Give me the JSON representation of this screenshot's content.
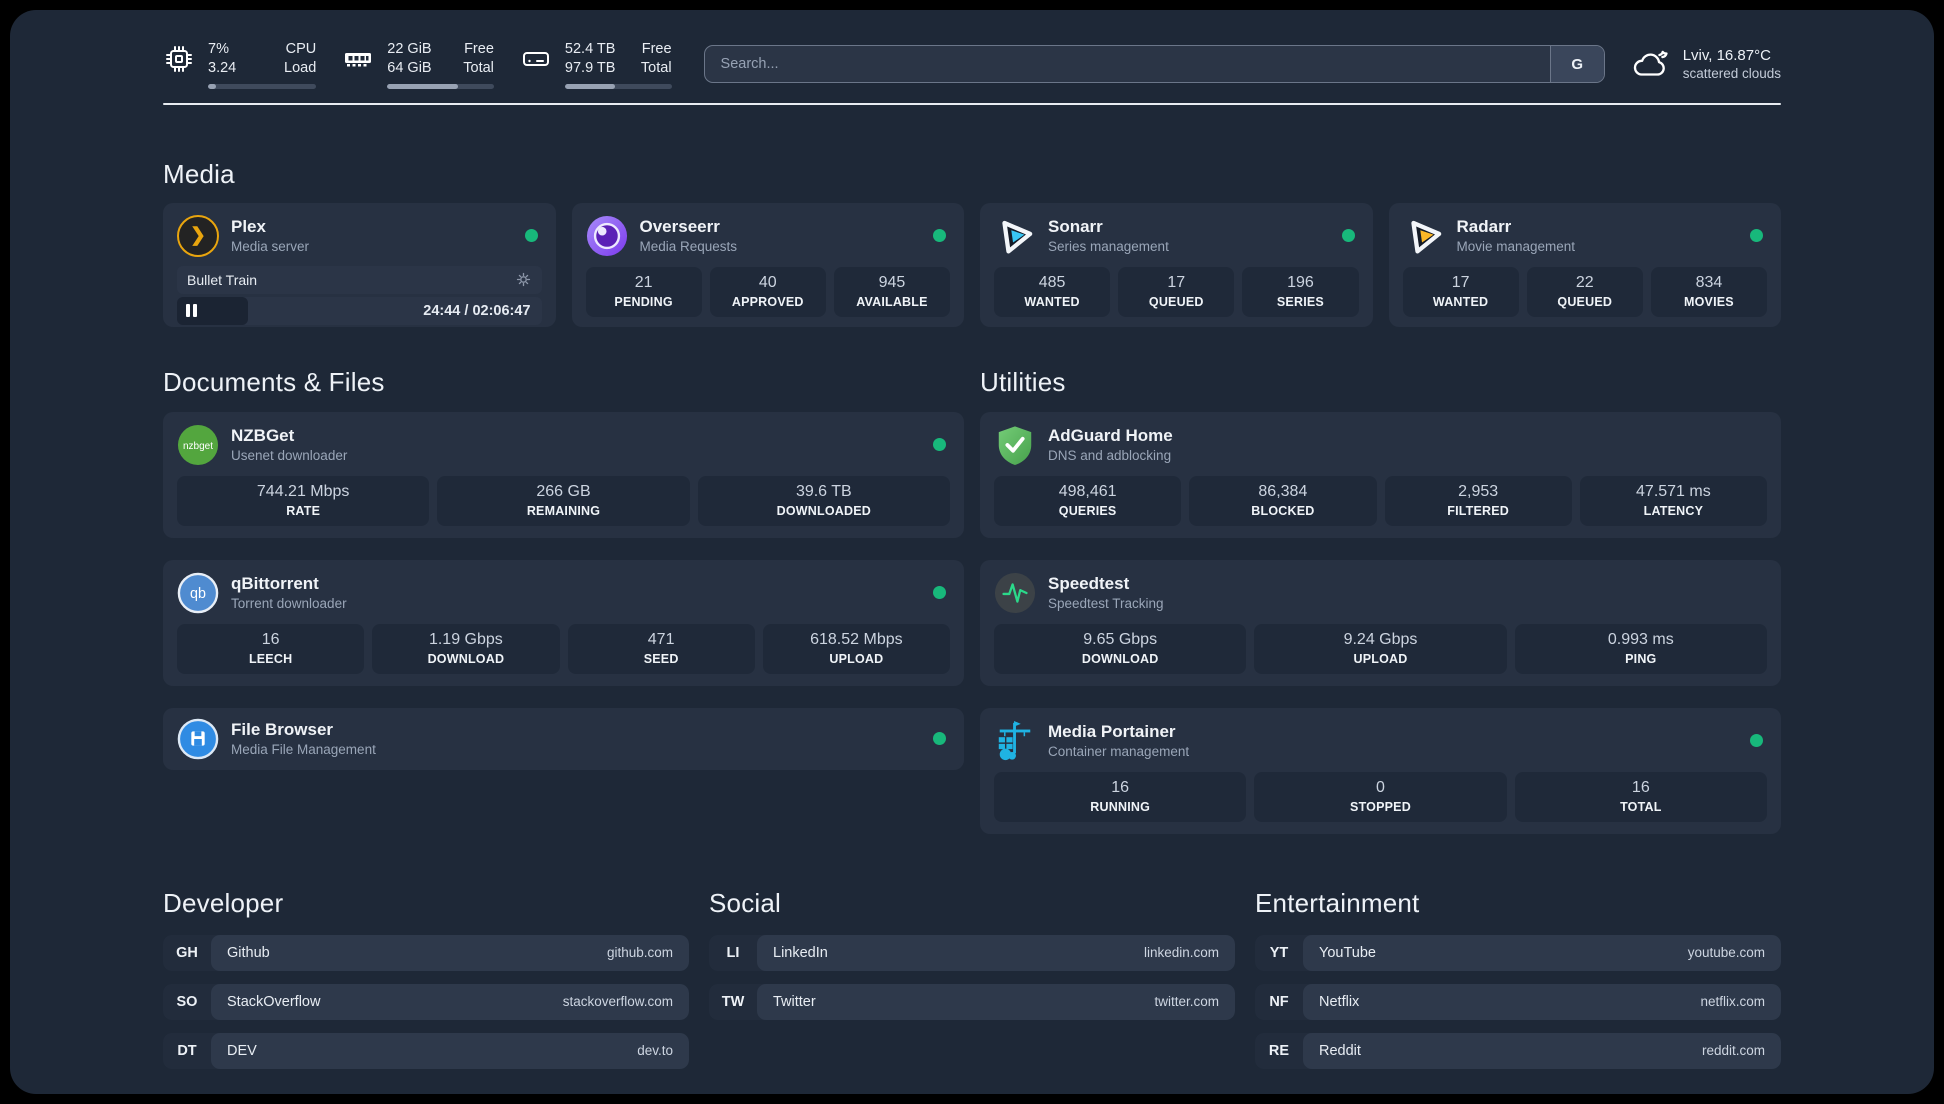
{
  "topbar": {
    "cpu": {
      "line1": "7%",
      "line2": "3.24",
      "label1": "CPU",
      "label2": "Load",
      "progress_pct": 7
    },
    "ram": {
      "line1": "22 GiB",
      "line2": "64 GiB",
      "label1": "Free",
      "label2": "Total",
      "progress_pct": 66
    },
    "disk": {
      "line1": "52.4 TB",
      "line2": "97.9 TB",
      "label1": "Free",
      "label2": "Total",
      "progress_pct": 47
    },
    "search": {
      "placeholder": "Search...",
      "engine_label": "G"
    },
    "weather": {
      "location": "Lviv, 16.87°C",
      "condition": "scattered clouds"
    }
  },
  "sections": {
    "media": "Media",
    "documents": "Documents & Files",
    "utilities": "Utilities",
    "developer": "Developer",
    "social": "Social",
    "entertainment": "Entertainment"
  },
  "media": {
    "plex": {
      "name": "Plex",
      "subtitle": "Media server",
      "now_playing": "Bullet Train",
      "time": "24:44 / 02:06:47",
      "progress_pct": 19.5
    },
    "overseerr": {
      "name": "Overseerr",
      "subtitle": "Media Requests",
      "stats": [
        {
          "value": "21",
          "label": "PENDING"
        },
        {
          "value": "40",
          "label": "APPROVED"
        },
        {
          "value": "945",
          "label": "AVAILABLE"
        }
      ]
    },
    "sonarr": {
      "name": "Sonarr",
      "subtitle": "Series management",
      "stats": [
        {
          "value": "485",
          "label": "WANTED"
        },
        {
          "value": "17",
          "label": "QUEUED"
        },
        {
          "value": "196",
          "label": "SERIES"
        }
      ]
    },
    "radarr": {
      "name": "Radarr",
      "subtitle": "Movie management",
      "stats": [
        {
          "value": "17",
          "label": "WANTED"
        },
        {
          "value": "22",
          "label": "QUEUED"
        },
        {
          "value": "834",
          "label": "MOVIES"
        }
      ]
    }
  },
  "documents": {
    "nzbget": {
      "name": "NZBGet",
      "subtitle": "Usenet downloader",
      "stats": [
        {
          "value": "744.21 Mbps",
          "label": "RATE"
        },
        {
          "value": "266 GB",
          "label": "REMAINING"
        },
        {
          "value": "39.6 TB",
          "label": "DOWNLOADED"
        }
      ]
    },
    "qbittorrent": {
      "name": "qBittorrent",
      "subtitle": "Torrent downloader",
      "stats": [
        {
          "value": "16",
          "label": "LEECH"
        },
        {
          "value": "1.19 Gbps",
          "label": "DOWNLOAD"
        },
        {
          "value": "471",
          "label": "SEED"
        },
        {
          "value": "618.52 Mbps",
          "label": "UPLOAD"
        }
      ]
    },
    "filebrowser": {
      "name": "File Browser",
      "subtitle": "Media File Management"
    }
  },
  "utilities": {
    "adguard": {
      "name": "AdGuard Home",
      "subtitle": "DNS and adblocking",
      "stats": [
        {
          "value": "498,461",
          "label": "QUERIES"
        },
        {
          "value": "86,384",
          "label": "BLOCKED"
        },
        {
          "value": "2,953",
          "label": "FILTERED"
        },
        {
          "value": "47.571 ms",
          "label": "LATENCY"
        }
      ]
    },
    "speedtest": {
      "name": "Speedtest",
      "subtitle": "Speedtest Tracking",
      "stats": [
        {
          "value": "9.65 Gbps",
          "label": "DOWNLOAD"
        },
        {
          "value": "9.24 Gbps",
          "label": "UPLOAD"
        },
        {
          "value": "0.993 ms",
          "label": "PING"
        }
      ]
    },
    "portainer": {
      "name": "Media Portainer",
      "subtitle": "Container management",
      "stats": [
        {
          "value": "16",
          "label": "RUNNING"
        },
        {
          "value": "0",
          "label": "STOPPED"
        },
        {
          "value": "16",
          "label": "TOTAL"
        }
      ]
    }
  },
  "bookmarks": {
    "developer": [
      {
        "abbrev": "GH",
        "name": "Github",
        "url": "github.com"
      },
      {
        "abbrev": "SO",
        "name": "StackOverflow",
        "url": "stackoverflow.com"
      },
      {
        "abbrev": "DT",
        "name": "DEV",
        "url": "dev.to"
      }
    ],
    "social": [
      {
        "abbrev": "LI",
        "name": "LinkedIn",
        "url": "linkedin.com"
      },
      {
        "abbrev": "TW",
        "name": "Twitter",
        "url": "twitter.com"
      }
    ],
    "entertainment": [
      {
        "abbrev": "YT",
        "name": "YouTube",
        "url": "youtube.com"
      },
      {
        "abbrev": "NF",
        "name": "Netflix",
        "url": "netflix.com"
      },
      {
        "abbrev": "RE",
        "name": "Reddit",
        "url": "reddit.com"
      }
    ]
  },
  "colors": {
    "status_dot": "#18b87b",
    "accent_gold": "#e9a50e",
    "accent_cyan": "#38c6f4"
  }
}
